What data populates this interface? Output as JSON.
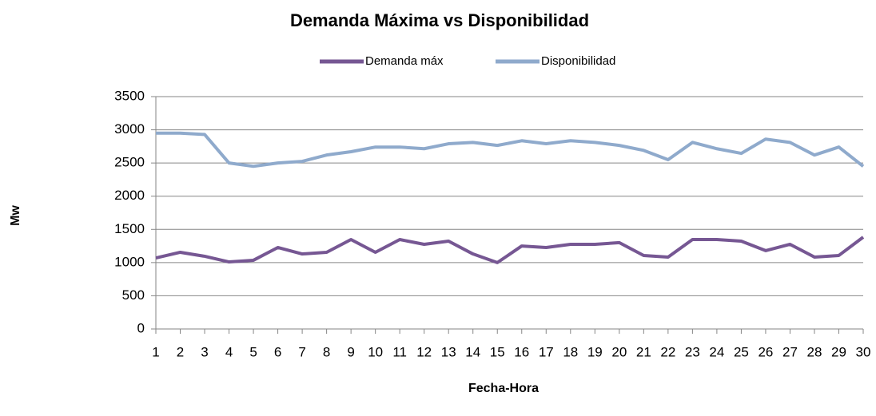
{
  "chart_data": {
    "type": "line",
    "title": "Demanda Máxima vs Disponibilidad",
    "x_label": "Fecha-Hora",
    "y_label": "Mw",
    "categories": [
      "1",
      "2",
      "3",
      "4",
      "5",
      "6",
      "7",
      "8",
      "9",
      "10",
      "11",
      "12",
      "13",
      "14",
      "15",
      "16",
      "17",
      "18",
      "19",
      "20",
      "21",
      "22",
      "23",
      "24",
      "25",
      "26",
      "27",
      "28",
      "29",
      "30"
    ],
    "series": [
      {
        "name": "Demanda máx",
        "color": "#765793",
        "values": [
          1070,
          1155,
          1095,
          1010,
          1035,
          1227,
          1130,
          1155,
          1347,
          1155,
          1347,
          1275,
          1323,
          1130,
          1000,
          1250,
          1227,
          1275,
          1275,
          1300,
          1107,
          1083,
          1347,
          1347,
          1323,
          1180,
          1275,
          1083,
          1107,
          1383
        ]
      },
      {
        "name": "Disponibilidad",
        "color": "#8faacc",
        "values": [
          2950,
          2950,
          2930,
          2500,
          2450,
          2500,
          2525,
          2620,
          2670,
          2740,
          2740,
          2715,
          2790,
          2810,
          2765,
          2835,
          2790,
          2835,
          2810,
          2765,
          2690,
          2550,
          2810,
          2715,
          2645,
          2860,
          2810,
          2620,
          2740,
          2450
        ]
      }
    ],
    "ylim": [
      0,
      3500
    ],
    "yticks": [
      0,
      500,
      1000,
      1500,
      2000,
      2500,
      3000,
      3500
    ],
    "grid": true,
    "legend": "top"
  }
}
